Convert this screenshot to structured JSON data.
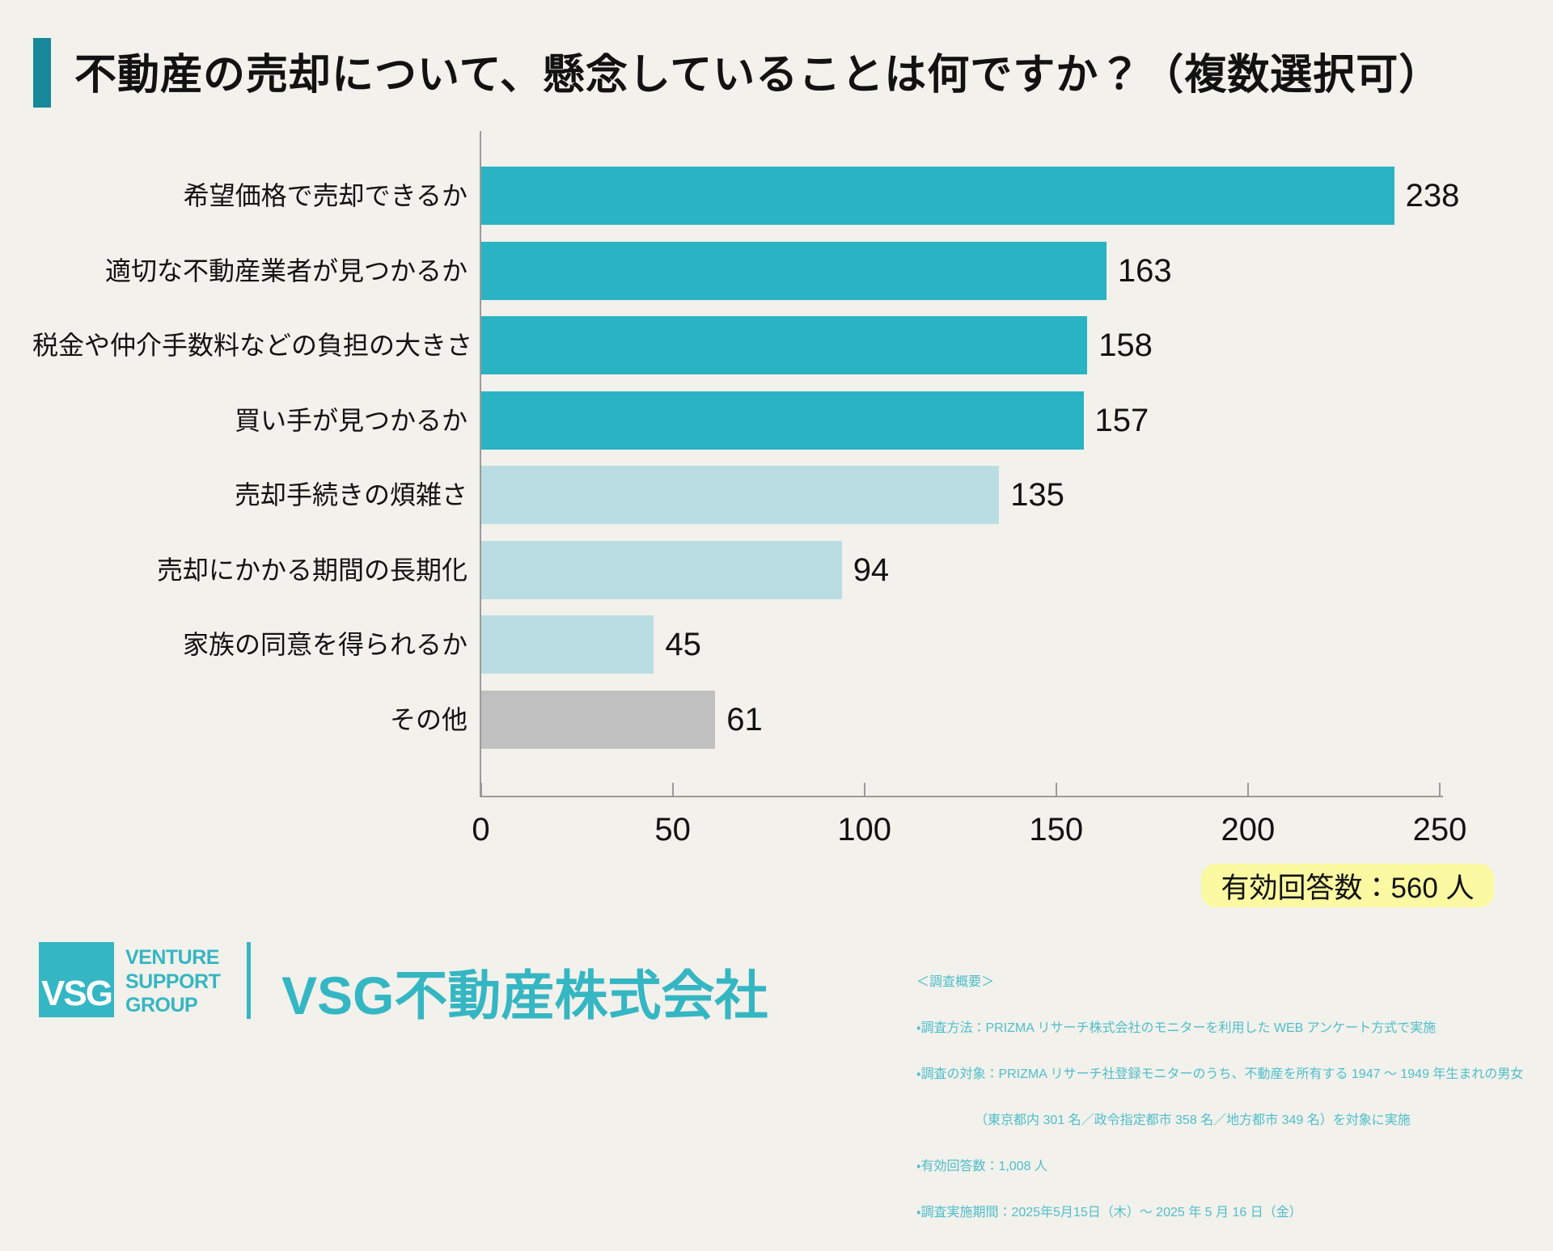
{
  "title": {
    "text": "不動産の売却について、懸念していることは何ですか？（複数選択可）"
  },
  "chart_data": {
    "type": "bar",
    "orientation": "horizontal",
    "title": "不動産の売却について、懸念していることは何ですか？（複数選択可）",
    "categories": [
      "希望価格で売却できるか",
      "適切な不動産業者が見つかるか",
      "税金や仲介手数料などの負担の大きさ",
      "買い手が見つかるか",
      "売却手続きの煩雑さ",
      "売却にかかる期間の長期化",
      "家族の同意を得られるか",
      "その他"
    ],
    "values": [
      238,
      163,
      158,
      157,
      135,
      94,
      45,
      61
    ],
    "bar_color_keys": [
      "teal",
      "teal",
      "teal",
      "teal",
      "light",
      "light",
      "light",
      "gray"
    ],
    "xlabel": "",
    "ylabel": "",
    "xlim": [
      0,
      250
    ],
    "xticks": [
      0,
      50,
      100,
      150,
      200,
      250
    ],
    "grid": false,
    "value_labels_shown": true,
    "legend": "none"
  },
  "annotation": {
    "valid_responses": "有効回答数：560 人"
  },
  "footer": {
    "logo": {
      "abbr": "VSG",
      "lines": [
        "VENTURE",
        "SUPPORT",
        "GROUP"
      ]
    },
    "company": "VSG不動産株式会社",
    "survey": {
      "header": "＜調査概要＞",
      "lines": [
        "・調査方法：PRIZMA リサーチ株式会社のモニターを利用した WEB アンケート方式で実施",
        "・調査の対象：PRIZMA リサーチ社登録モニターのうち、不動産を所有する 1947 ～ 1949 年生まれの男女",
        "　　　　　（東京都内 301 名／政令指定都市 358 名／地方都市 349 名）を対象に実施",
        "・有効回答数：1,008 人",
        "・調査実施期間：2025年5月15日（木）～ 2025 年 5 月 16 日（金）"
      ]
    }
  },
  "colors": {
    "background": "#F2F1EB",
    "accent_bar": "#16889A",
    "bar_teal": "#2AB3C3",
    "bar_light_teal": "#BADDE3",
    "bar_gray": "#C0C0C0",
    "axis_line": "#9A9A9A",
    "text_dark": "#121212",
    "brand_teal": "#35B6C3",
    "survey_text_teal": "#4FBECB",
    "highlight_yellow": "#FBF9A2",
    "logo_text_white": "#FFFFFF"
  }
}
